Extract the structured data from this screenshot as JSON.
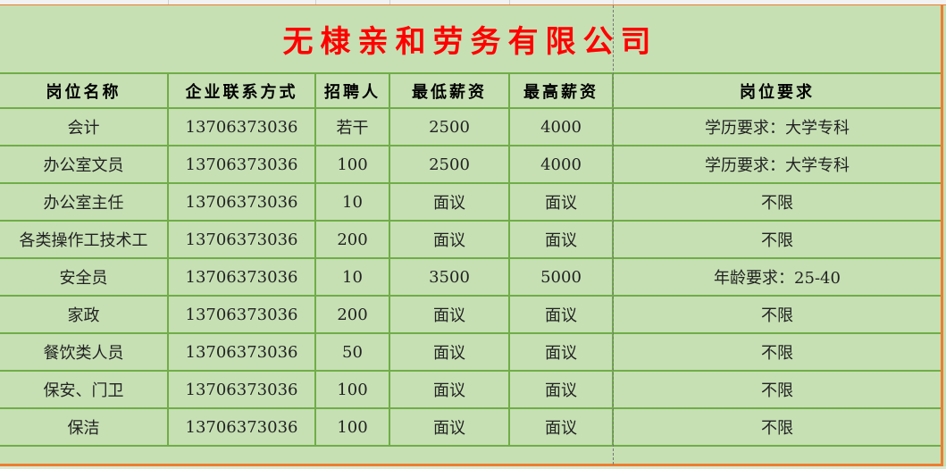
{
  "title": "无棣亲和劳务有限公司",
  "headers": [
    "岗位名称",
    "企业联系方式",
    "招聘人",
    "最低薪资",
    "最高薪资",
    "岗位要求"
  ],
  "rows": [
    [
      "会计",
      "13706373036",
      "若干",
      "2500",
      "4000",
      "学历要求：大学专科"
    ],
    [
      "办公室文员",
      "13706373036",
      "100",
      "2500",
      "4000",
      "学历要求：大学专科"
    ],
    [
      "办公室主任",
      "13706373036",
      "10",
      "面议",
      "面议",
      "不限"
    ],
    [
      "各类操作工技术工",
      "13706373036",
      "200",
      "面议",
      "面议",
      "不限"
    ],
    [
      "安全员",
      "13706373036",
      "10",
      "3500",
      "5000",
      "年龄要求：25-40"
    ],
    [
      "家政",
      "13706373036",
      "200",
      "面议",
      "面议",
      "不限"
    ],
    [
      "餐饮类人员",
      "13706373036",
      "50",
      "面议",
      "面议",
      "不限"
    ],
    [
      "保安、门卫",
      "13706373036",
      "100",
      "面议",
      "面议",
      "不限"
    ],
    [
      "保洁",
      "13706373036",
      "100",
      "面议",
      "面议",
      "不限"
    ]
  ],
  "colors": {
    "cell_fill": "#c6e0b4",
    "grid": "#70ad47",
    "title": "#ff0000",
    "selection_border": "#ed7d31"
  }
}
